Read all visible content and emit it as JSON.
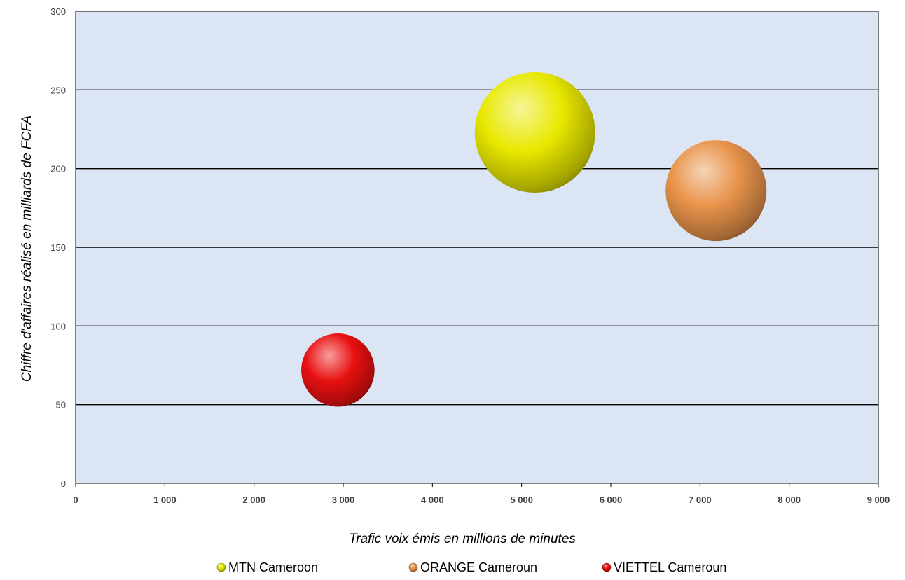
{
  "chart_data": {
    "type": "bubble",
    "xlabel": "Trafic voix émis en millions de minutes",
    "ylabel": "Chiffre d'affaires réalisé en milliards de  FCFA",
    "xlim": [
      0,
      9000
    ],
    "ylim": [
      0,
      300
    ],
    "x_ticks": [
      "0",
      "1 000",
      "2 000",
      "3 000",
      "4 000",
      "5 000",
      "6 000",
      "7 000",
      "8 000",
      "9 000"
    ],
    "y_ticks": [
      "0",
      "50",
      "100",
      "150",
      "200",
      "250",
      "300"
    ],
    "grid": true,
    "legend_position": "bottom",
    "series": [
      {
        "name": "MTN Cameroon",
        "x": 5150,
        "y": 223,
        "size": 100,
        "color": "#e8e800"
      },
      {
        "name": "ORANGE Cameroun",
        "x": 7180,
        "y": 186,
        "size": 70,
        "color": "#e8934a"
      },
      {
        "name": "VIETTEL Cameroun",
        "x": 2940,
        "y": 72,
        "size": 37,
        "color": "#e81010"
      }
    ]
  }
}
